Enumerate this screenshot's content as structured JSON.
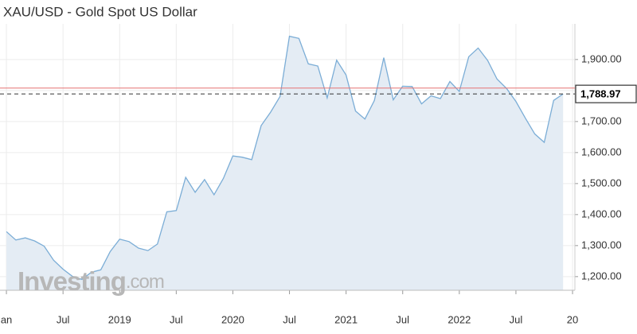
{
  "chart_data": {
    "type": "area",
    "title": "XAU/USD - Gold Spot US Dollar",
    "watermark": {
      "brand": "Investing",
      "suffix": ".com"
    },
    "x": [
      0,
      1,
      2,
      3,
      4,
      5,
      6,
      7,
      8,
      9,
      10,
      11,
      12,
      13,
      14,
      15,
      16,
      17,
      18,
      19,
      20,
      21,
      22,
      23,
      24,
      25,
      26,
      27,
      28,
      29,
      30,
      31,
      32,
      33,
      34,
      35,
      36,
      37,
      38,
      39,
      40,
      41,
      42,
      43,
      44,
      45,
      46,
      47,
      48,
      49,
      50,
      51,
      52,
      53,
      54,
      55,
      56,
      57,
      58,
      59
    ],
    "series": [
      {
        "name": "XAU/USD",
        "color": "#7badd6",
        "fill": "#e4ecf4",
        "values": [
          1345,
          1318,
          1325,
          1315,
          1298,
          1253,
          1224,
          1201,
          1191,
          1214,
          1222,
          1281,
          1321,
          1313,
          1292,
          1284,
          1305,
          1409,
          1413,
          1520,
          1472,
          1513,
          1464,
          1517,
          1589,
          1585,
          1577,
          1687,
          1730,
          1781,
          1975,
          1968,
          1886,
          1879,
          1776,
          1898,
          1850,
          1734,
          1708,
          1768,
          1906,
          1770,
          1814,
          1813,
          1757,
          1783,
          1774,
          1829,
          1797,
          1909,
          1937,
          1897,
          1837,
          1807,
          1765,
          1711,
          1660,
          1633,
          1768,
          1788.97
        ]
      }
    ],
    "current_price": {
      "value": 1788.97,
      "label": "1,788.97"
    },
    "red_line": 1808,
    "xlim": [
      -0.68,
      60.25
    ],
    "ylim": [
      1156,
      2015
    ],
    "xticks": [
      {
        "value": 0,
        "label": "an"
      },
      {
        "value": 6,
        "label": "Jul"
      },
      {
        "value": 12,
        "label": "2019"
      },
      {
        "value": 18,
        "label": "Jul"
      },
      {
        "value": 24,
        "label": "2020"
      },
      {
        "value": 30,
        "label": "Jul"
      },
      {
        "value": 36,
        "label": "2021"
      },
      {
        "value": 42,
        "label": "Jul"
      },
      {
        "value": 48,
        "label": "2022"
      },
      {
        "value": 54,
        "label": "Jul"
      },
      {
        "value": 60,
        "label": "20"
      }
    ],
    "yticks": [
      {
        "value": 1200,
        "label": "1,200.00"
      },
      {
        "value": 1300,
        "label": "1,300.00"
      },
      {
        "value": 1400,
        "label": "1,400.00"
      },
      {
        "value": 1500,
        "label": "1,500.00"
      },
      {
        "value": 1600,
        "label": "1,600.00"
      },
      {
        "value": 1700,
        "label": "1,700.00"
      },
      {
        "value": 1800,
        "label": "1,800.00"
      },
      {
        "value": 1900,
        "label": "1,900.00"
      }
    ],
    "grid": true
  }
}
